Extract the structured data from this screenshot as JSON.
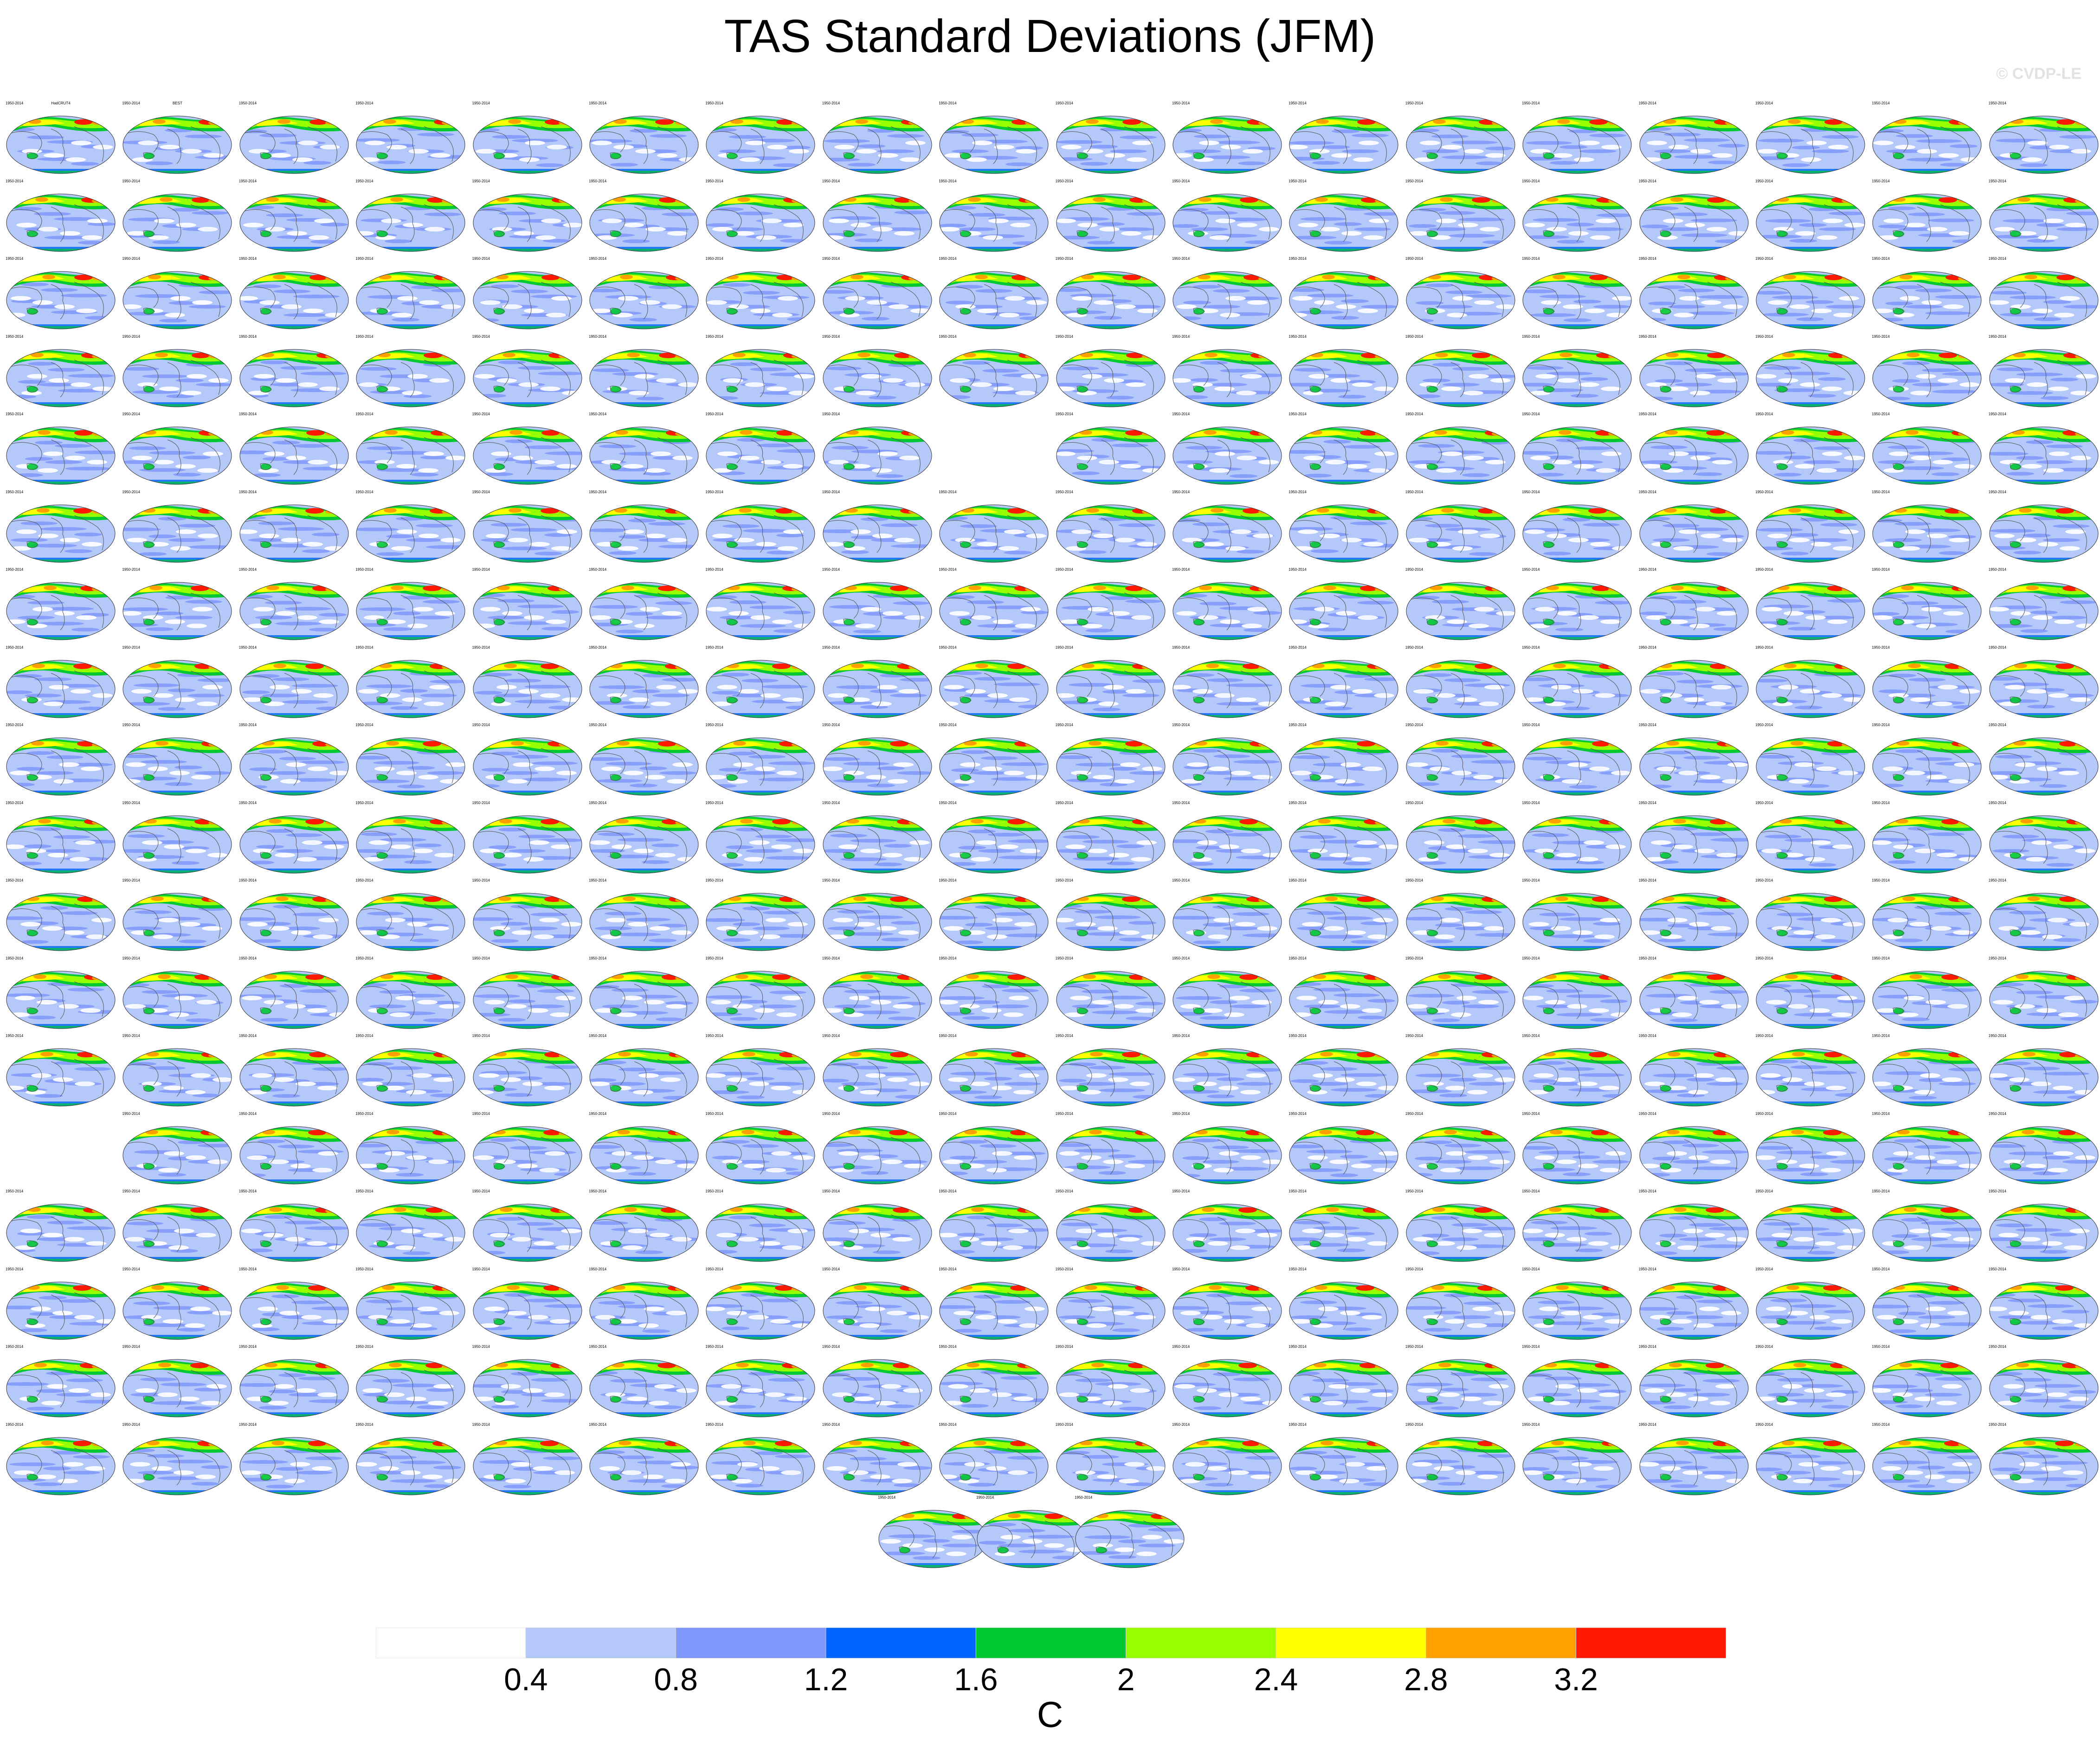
{
  "title": "TAS Standard Deviations (JFM)",
  "watermark": "© CVDP-LE",
  "panel_period": "1950-2014",
  "panels_per_row": [
    18,
    18,
    18,
    18,
    17,
    18,
    18,
    18,
    18,
    18,
    18,
    18,
    18,
    17,
    18,
    18,
    18,
    18,
    3
  ],
  "gaps": [
    {
      "row": 4,
      "col": 8
    },
    {
      "row": 13,
      "col": 0
    }
  ],
  "first_panels": [
    "HadCRUT4",
    "BEST"
  ],
  "colorbar": {
    "colors": [
      "#ffffff",
      "#b4c8fa",
      "#7f96fa",
      "#0064ff",
      "#00c832",
      "#96ff00",
      "#ffff00",
      "#ffa000",
      "#ff1900"
    ],
    "tick_labels": [
      "0.4",
      "0.8",
      "1.2",
      "1.6",
      "2",
      "2.4",
      "2.8",
      "3.2"
    ],
    "units": "C"
  },
  "colors": {
    "ocean_light": "#b4c8fa",
    "ocean_mid": "#7f96fa",
    "land_high": "#ff1900",
    "coast": "#555555"
  }
}
